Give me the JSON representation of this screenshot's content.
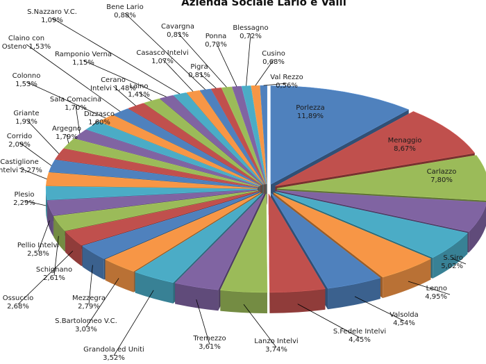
{
  "chart_data": {
    "type": "pie",
    "title": "Azienda Sociale Lario e Valli",
    "exploded": true,
    "three_d": true,
    "slices": [
      {
        "label": "Porlezza",
        "value": 11.89,
        "display": "11,89%",
        "color": "#4f81bd"
      },
      {
        "label": "Menaggio",
        "value": 8.67,
        "display": "8,67%",
        "color": "#c0504d"
      },
      {
        "label": "Carlazzo",
        "value": 7.8,
        "display": "7,80%",
        "color": "#9bbb59"
      },
      {
        "label": "",
        "value": 5.2,
        "display": "",
        "color": "#8064a2"
      },
      {
        "label": "S.Siro",
        "value": 5.02,
        "display": "5,02%",
        "color": "#4bacc6"
      },
      {
        "label": "Lenno",
        "value": 4.95,
        "display": "4,95%",
        "color": "#f79646"
      },
      {
        "label": "Valsolda",
        "value": 4.54,
        "display": "4,54%",
        "color": "#4f81bd"
      },
      {
        "label": "S.Fedele  Intelvi",
        "value": 4.45,
        "display": "4,45%",
        "color": "#c0504d"
      },
      {
        "label": "Lanzo Intelvi",
        "value": 3.74,
        "display": "3,74%",
        "color": "#9bbb59"
      },
      {
        "label": "Tremezzo",
        "value": 3.61,
        "display": "3,61%",
        "color": "#8064a2"
      },
      {
        "label": "Grandola ed Uniti",
        "value": 3.52,
        "display": "3,52%",
        "color": "#4bacc6"
      },
      {
        "label": "S.Bartolomeo V.C.",
        "value": 3.03,
        "display": "3,03%",
        "color": "#f79646"
      },
      {
        "label": "Mezzegra",
        "value": 2.79,
        "display": "2,79%",
        "color": "#4f81bd"
      },
      {
        "label": "Ossuccio",
        "value": 2.68,
        "display": "2,68%",
        "color": "#c0504d"
      },
      {
        "label": "Schignano",
        "value": 2.61,
        "display": "2,61%",
        "color": "#9bbb59"
      },
      {
        "label": "Pellio Intelvi",
        "value": 2.58,
        "display": "2,58%",
        "color": "#8064a2"
      },
      {
        "label": "Plesio",
        "value": 2.29,
        "display": "2,29%",
        "color": "#4bacc6"
      },
      {
        "label": "Castiglione Intelvi",
        "value": 2.27,
        "display": "2,27%",
        "color": "#f79646"
      },
      {
        "label": "Corrido",
        "value": 2.09,
        "display": "2,09%",
        "color": "#4f81bd"
      },
      {
        "label": "Griante",
        "value": 1.93,
        "display": "1,93%",
        "color": "#c0504d"
      },
      {
        "label": "Argegno",
        "value": 1.79,
        "display": "1,79%",
        "color": "#9bbb59"
      },
      {
        "label": "Sala Comacina",
        "value": 1.7,
        "display": "1,70%",
        "color": "#8064a2"
      },
      {
        "label": "Dizzasco",
        "value": 1.6,
        "display": "1,60%",
        "color": "#4bacc6"
      },
      {
        "label": "Colonno",
        "value": 1.53,
        "display": "1,53%",
        "color": "#f79646"
      },
      {
        "label": "Claino con Osteno",
        "value": 1.53,
        "display": "1,53%",
        "color": "#4f81bd"
      },
      {
        "label": "Cerano Intelvi",
        "value": 1.48,
        "display": "1,48%",
        "color": "#c0504d"
      },
      {
        "label": "Laino",
        "value": 1.41,
        "display": "1,41%",
        "color": "#9bbb59"
      },
      {
        "label": "Ramponio Verna",
        "value": 1.15,
        "display": "1,15%",
        "color": "#8064a2"
      },
      {
        "label": "S.Nazzaro V.C.",
        "value": 1.09,
        "display": "1,09%",
        "color": "#4bacc6"
      },
      {
        "label": "Casasco Intelvi",
        "value": 1.07,
        "display": "1,07%",
        "color": "#f79646"
      },
      {
        "label": "Bene Lario",
        "value": 0.88,
        "display": "0,88%",
        "color": "#4f81bd"
      },
      {
        "label": "Pigra",
        "value": 0.81,
        "display": "0,81%",
        "color": "#c0504d"
      },
      {
        "label": "Cavargna",
        "value": 0.81,
        "display": "0,81%",
        "color": "#9bbb59"
      },
      {
        "label": "Ponna",
        "value": 0.73,
        "display": "0,73%",
        "color": "#8064a2"
      },
      {
        "label": "Blessagno",
        "value": 0.72,
        "display": "0,72%",
        "color": "#4bacc6"
      },
      {
        "label": "Cusino",
        "value": 0.68,
        "display": "0,68%",
        "color": "#f79646"
      },
      {
        "label": "Val Rezzo",
        "value": 0.56,
        "display": "0,56%",
        "color": "#4f81bd"
      }
    ]
  }
}
